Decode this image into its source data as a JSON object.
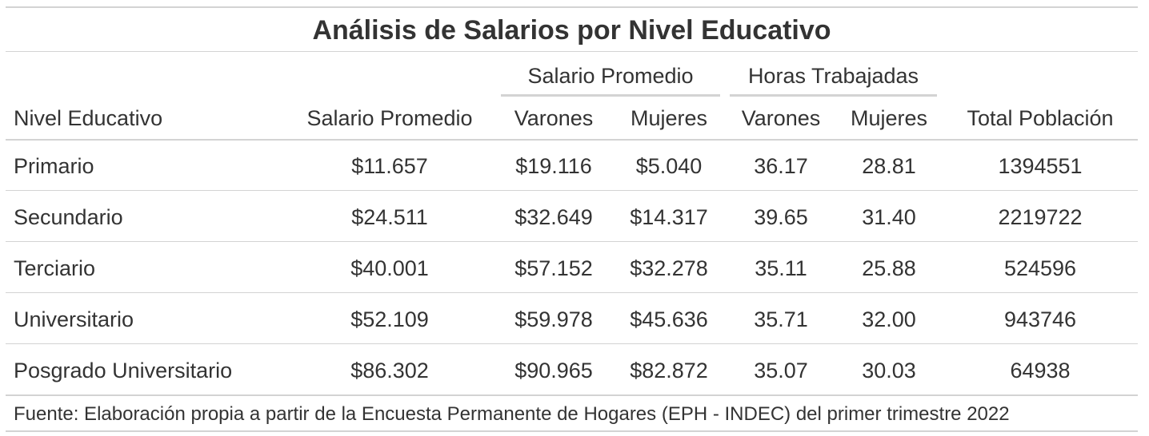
{
  "table": {
    "title": "Análisis de Salarios por Nivel Educativo",
    "spanners": {
      "salario": "Salario Promedio",
      "horas": "Horas Trabajadas"
    },
    "columns": [
      "Nivel Educativo",
      "Salario Promedio",
      "Varones",
      "Mujeres",
      "Varones",
      "Mujeres",
      "Total Población"
    ],
    "rows": [
      [
        "Primario",
        "$11.657",
        "$19.116",
        "$5.040",
        "36.17",
        "28.81",
        "1394551"
      ],
      [
        "Secundario",
        "$24.511",
        "$32.649",
        "$14.317",
        "39.65",
        "31.40",
        "2219722"
      ],
      [
        "Terciario",
        "$40.001",
        "$57.152",
        "$32.278",
        "35.11",
        "25.88",
        "524596"
      ],
      [
        "Universitario",
        "$52.109",
        "$59.978",
        "$45.636",
        "35.71",
        "32.00",
        "943746"
      ],
      [
        "Posgrado Universitario",
        "$86.302",
        "$90.965",
        "$82.872",
        "35.07",
        "30.03",
        "64938"
      ]
    ],
    "source_note": "Fuente: Elaboración propia a partir de la Encuesta Permanente de Hogares (EPH - INDEC) del primer trimestre 2022"
  }
}
